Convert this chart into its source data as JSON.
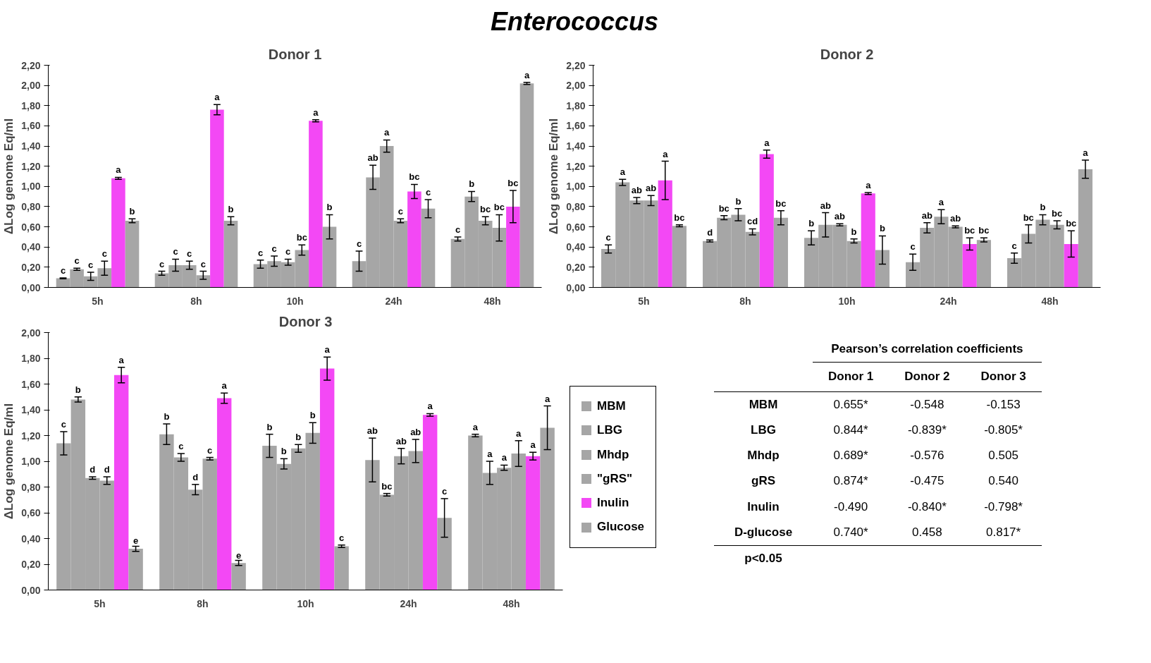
{
  "chart_data": [
    {
      "type": "other",
      "title": "Enterococcus"
    },
    {
      "type": "bar",
      "title": "Donor 1",
      "ylabel": "ΔLog genome Eq/ml",
      "categories": [
        "5h",
        "8h",
        "10h",
        "24h",
        "48h"
      ],
      "ylim": [
        0,
        2.2
      ],
      "yticks": [
        {
          "value": 0,
          "label": "0,00"
        },
        {
          "value": 0.2,
          "label": "0,20"
        },
        {
          "value": 0.4,
          "label": "0,40"
        },
        {
          "value": 0.6,
          "label": "0,60"
        },
        {
          "value": 0.8,
          "label": "0,80"
        },
        {
          "value": 1.0,
          "label": "1,00"
        },
        {
          "value": 1.2,
          "label": "1,20"
        },
        {
          "value": 1.4,
          "label": "1,40"
        },
        {
          "value": 1.6,
          "label": "1,60"
        },
        {
          "value": 1.8,
          "label": "1,80"
        },
        {
          "value": 2.0,
          "label": "2,00"
        },
        {
          "value": 2.2,
          "label": "2,20"
        }
      ],
      "grid": false,
      "legend": false,
      "series": [
        {
          "color": "#a6a6a6",
          "values": [
            0.09,
            0.14,
            0.23,
            0.26,
            0.48
          ],
          "errors": [
            0.005,
            0.02,
            0.04,
            0.1,
            0.02
          ],
          "value_labels": [
            "c",
            "c",
            "c",
            "c",
            "c"
          ]
        },
        {
          "color": "#a6a6a6",
          "values": [
            0.18,
            0.22,
            0.26,
            1.09,
            0.9
          ],
          "errors": [
            0.01,
            0.06,
            0.05,
            0.12,
            0.05
          ],
          "value_labels": [
            "c",
            "c",
            "c",
            "ab",
            "b"
          ]
        },
        {
          "color": "#a6a6a6",
          "values": [
            0.11,
            0.22,
            0.25,
            1.4,
            0.66
          ],
          "errors": [
            0.04,
            0.04,
            0.03,
            0.06,
            0.04
          ],
          "value_labels": [
            "c",
            "c",
            "c",
            "a",
            "bc"
          ]
        },
        {
          "color": "#a6a6a6",
          "values": [
            0.19,
            0.12,
            0.37,
            0.66,
            0.59
          ],
          "errors": [
            0.07,
            0.04,
            0.05,
            0.02,
            0.13
          ],
          "value_labels": [
            "c",
            "c",
            "bc",
            "c",
            "bc"
          ]
        },
        {
          "color": "#f348f5",
          "values": [
            1.08,
            1.76,
            1.65,
            0.95,
            0.8
          ],
          "errors": [
            0.01,
            0.05,
            0.01,
            0.07,
            0.16
          ],
          "value_labels": [
            "a",
            "a",
            "a",
            "bc",
            "bc"
          ]
        },
        {
          "color": "#a6a6a6",
          "values": [
            0.66,
            0.66,
            0.6,
            0.78,
            2.02
          ],
          "errors": [
            0.02,
            0.04,
            0.12,
            0.09,
            0.01
          ],
          "value_labels": [
            "b",
            "b",
            "b",
            "c",
            "a"
          ]
        }
      ]
    },
    {
      "type": "bar",
      "title": "Donor 2",
      "ylabel": "ΔLog genome Eq/ml",
      "categories": [
        "5h",
        "8h",
        "10h",
        "24h",
        "48h"
      ],
      "ylim": [
        0,
        2.2
      ],
      "yticks": [
        {
          "value": 0,
          "label": "0,00"
        },
        {
          "value": 0.2,
          "label": "0,20"
        },
        {
          "value": 0.4,
          "label": "0,40"
        },
        {
          "value": 0.6,
          "label": "0,60"
        },
        {
          "value": 0.8,
          "label": "0,80"
        },
        {
          "value": 1.0,
          "label": "1,00"
        },
        {
          "value": 1.2,
          "label": "1,20"
        },
        {
          "value": 1.4,
          "label": "1,40"
        },
        {
          "value": 1.6,
          "label": "1,60"
        },
        {
          "value": 1.8,
          "label": "1,80"
        },
        {
          "value": 2.0,
          "label": "2,00"
        },
        {
          "value": 2.2,
          "label": "2,20"
        }
      ],
      "grid": false,
      "legend": false,
      "series": [
        {
          "color": "#a6a6a6",
          "values": [
            0.38,
            0.46,
            0.49,
            0.25,
            0.29
          ],
          "errors": [
            0.04,
            0.01,
            0.07,
            0.08,
            0.05
          ],
          "value_labels": [
            "c",
            "d",
            "b",
            "c",
            "c"
          ]
        },
        {
          "color": "#a6a6a6",
          "values": [
            1.04,
            0.69,
            0.62,
            0.59,
            0.53
          ],
          "errors": [
            0.03,
            0.02,
            0.12,
            0.05,
            0.09
          ],
          "value_labels": [
            "a",
            "bc",
            "ab",
            "ab",
            "bc"
          ]
        },
        {
          "color": "#a6a6a6",
          "values": [
            0.86,
            0.72,
            0.62,
            0.7,
            0.67
          ],
          "errors": [
            0.03,
            0.06,
            0.01,
            0.07,
            0.05
          ],
          "value_labels": [
            "ab",
            "b",
            "ab",
            "a",
            "b"
          ]
        },
        {
          "color": "#a6a6a6",
          "values": [
            0.86,
            0.55,
            0.46,
            0.6,
            0.62
          ],
          "errors": [
            0.05,
            0.03,
            0.02,
            0.01,
            0.04
          ],
          "value_labels": [
            "ab",
            "cd",
            "b",
            "ab",
            "bc"
          ]
        },
        {
          "color": "#f348f5",
          "values": [
            1.06,
            1.32,
            0.93,
            0.43,
            0.43
          ],
          "errors": [
            0.19,
            0.04,
            0.01,
            0.06,
            0.13
          ],
          "value_labels": [
            "a",
            "a",
            "a",
            "bc",
            "bc"
          ]
        },
        {
          "color": "#a6a6a6",
          "values": [
            0.61,
            0.69,
            0.37,
            0.47,
            1.17
          ],
          "errors": [
            0.01,
            0.07,
            0.14,
            0.02,
            0.09
          ],
          "value_labels": [
            "bc",
            "bc",
            "b",
            "bc",
            "a"
          ]
        }
      ]
    },
    {
      "type": "bar",
      "title": "Donor 3",
      "ylabel": "ΔLog genome Eq/ml",
      "categories": [
        "5h",
        "8h",
        "10h",
        "24h",
        "48h"
      ],
      "ylim": [
        0,
        2.0
      ],
      "yticks": [
        {
          "value": 0,
          "label": "0,00"
        },
        {
          "value": 0.2,
          "label": "0,20"
        },
        {
          "value": 0.4,
          "label": "0,40"
        },
        {
          "value": 0.6,
          "label": "0,60"
        },
        {
          "value": 0.8,
          "label": "0,80"
        },
        {
          "value": 1.0,
          "label": "1,00"
        },
        {
          "value": 1.2,
          "label": "1,20"
        },
        {
          "value": 1.4,
          "label": "1,40"
        },
        {
          "value": 1.6,
          "label": "1,60"
        },
        {
          "value": 1.8,
          "label": "1,80"
        },
        {
          "value": 2.0,
          "label": "2,00"
        }
      ],
      "grid": false,
      "legend": "right",
      "series": [
        {
          "name": "MBM",
          "color": "#a6a6a6",
          "values": [
            1.14,
            1.21,
            1.12,
            1.01,
            1.2
          ],
          "errors": [
            0.09,
            0.08,
            0.09,
            0.17,
            0.01
          ],
          "value_labels": [
            "c",
            "b",
            "b",
            "ab",
            "a"
          ]
        },
        {
          "name": "LBG",
          "color": "#a6a6a6",
          "values": [
            1.48,
            1.03,
            0.98,
            0.74,
            0.91
          ],
          "errors": [
            0.02,
            0.03,
            0.04,
            0.01,
            0.09
          ],
          "value_labels": [
            "b",
            "c",
            "b",
            "bc",
            "a"
          ]
        },
        {
          "name": "Mhdp",
          "color": "#a6a6a6",
          "values": [
            0.87,
            0.78,
            1.1,
            1.04,
            0.95
          ],
          "errors": [
            0.01,
            0.04,
            0.03,
            0.06,
            0.02
          ],
          "value_labels": [
            "d",
            "d",
            "b",
            "ab",
            "a"
          ]
        },
        {
          "name": "\"gRS\"",
          "color": "#a6a6a6",
          "values": [
            0.85,
            1.02,
            1.22,
            1.08,
            1.06
          ],
          "errors": [
            0.03,
            0.01,
            0.08,
            0.09,
            0.1
          ],
          "value_labels": [
            "d",
            "c",
            "b",
            "ab",
            "a"
          ]
        },
        {
          "name": "Inulin",
          "color": "#f348f5",
          "values": [
            1.67,
            1.49,
            1.72,
            1.36,
            1.04
          ],
          "errors": [
            0.06,
            0.04,
            0.09,
            0.01,
            0.03
          ],
          "value_labels": [
            "a",
            "a",
            "a",
            "a",
            "a"
          ]
        },
        {
          "name": "Glucose",
          "color": "#a6a6a6",
          "values": [
            0.32,
            0.21,
            0.34,
            0.56,
            1.26
          ],
          "errors": [
            0.02,
            0.02,
            0.01,
            0.15,
            0.17
          ],
          "value_labels": [
            "e",
            "e",
            "c",
            "c",
            "a"
          ]
        }
      ]
    },
    {
      "type": "other",
      "title": "Pearson’s correlation coefficients",
      "categories": [
        "Donor 1",
        "Donor 2",
        "Donor 3"
      ],
      "y_categories": [
        "MBM",
        "LBG",
        "Mhdp",
        "gRS",
        "Inulin",
        "D-glucose"
      ],
      "cell_labels": [
        [
          "0.655*",
          "-0.548",
          "-0.153"
        ],
        [
          "0.844*",
          "-0.839*",
          "-0.805*"
        ],
        [
          "0.689*",
          "-0.576",
          "0.505"
        ],
        [
          "0.874*",
          "-0.475",
          "0.540"
        ],
        [
          "-0.490",
          "-0.840*",
          "-0.798*"
        ],
        [
          "0.740*",
          "0.458",
          "0.817*"
        ]
      ],
      "annotations": [
        "p<0.05"
      ]
    }
  ]
}
